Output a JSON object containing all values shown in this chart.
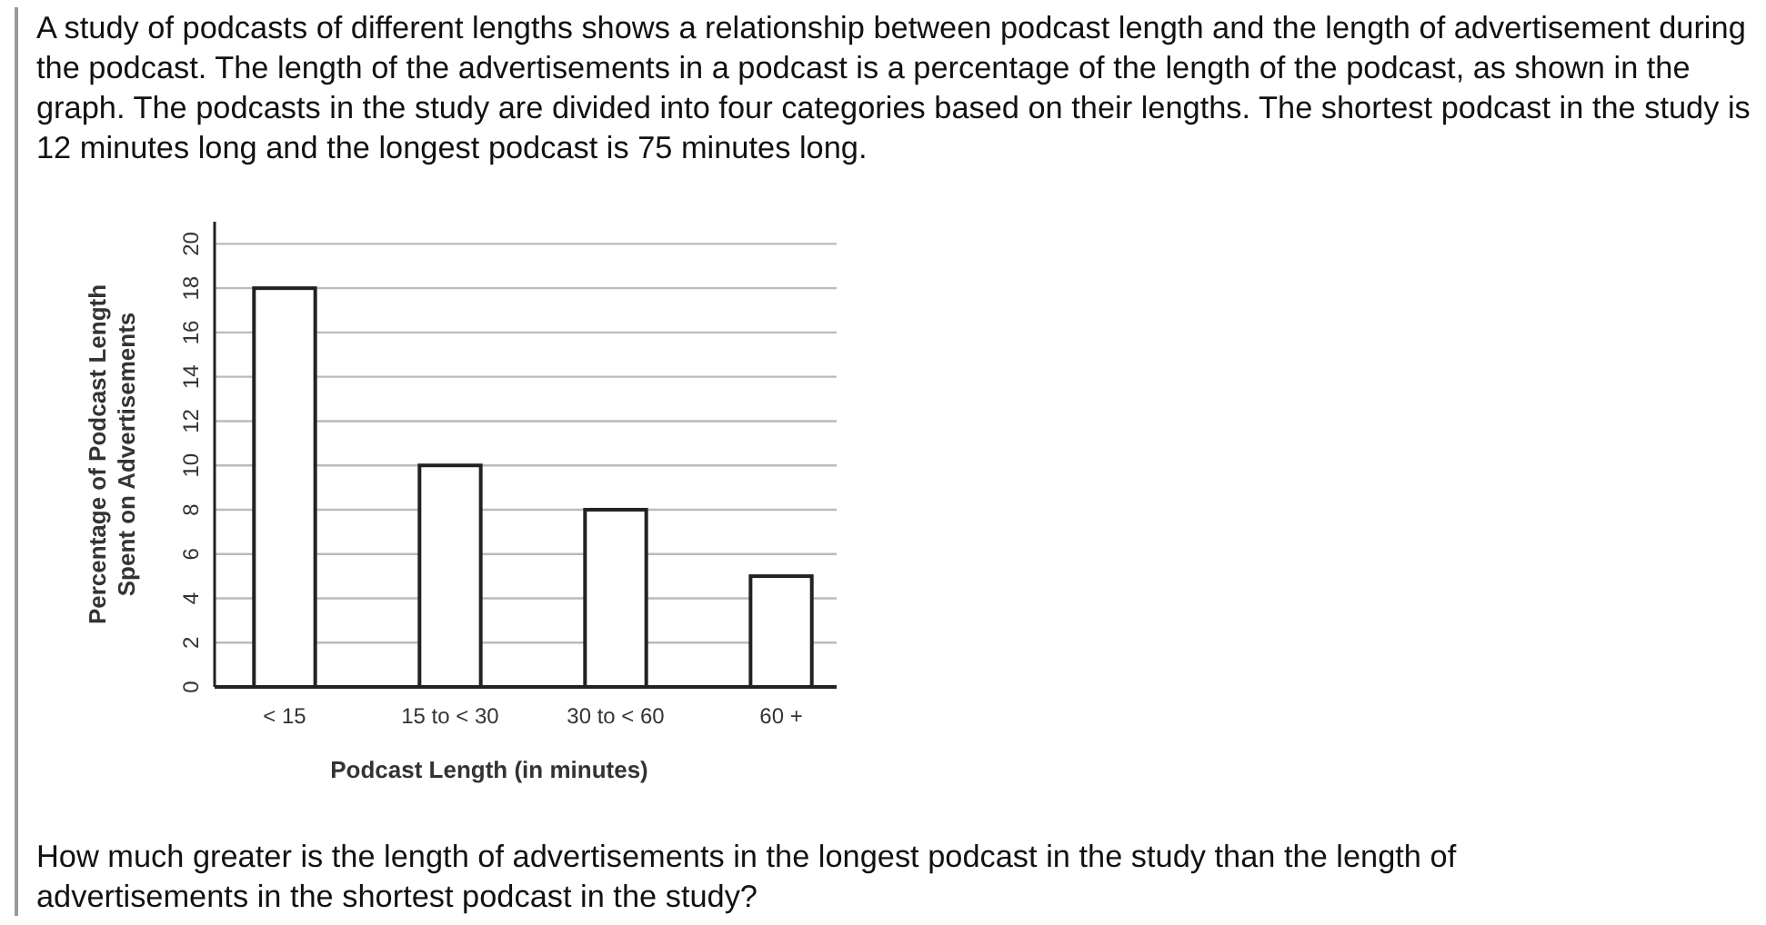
{
  "chart_data": {
    "type": "bar",
    "title": "A study of podcasts of different lengths shows a relationship between podcast length and the length of advertisement during the podcast. The length of the advertisements in a podcast is a percentage of the length of the podcast, as shown in the graph. The podcasts in the study are divided into four categories based on their lengths. The shortest podcast in the study is 12 minutes long and the longest podcast is 75 minutes long.",
    "annotations": [
      "How much greater is the length of advertisements in the longest podcast in the study than the length of advertisements in the shortest podcast in the study?"
    ],
    "categories": [
      "< 15",
      "15 to < 30",
      "30 to < 60",
      "60 +"
    ],
    "values": [
      18,
      10,
      8,
      5
    ],
    "color": "#ffffff",
    "xlabel": "Podcast Length (in minutes)",
    "ylabel": "Percentage of Podcast Length\nSpent on Advertisements",
    "ylim": [
      0,
      21
    ],
    "yticks": [
      0,
      2,
      4,
      6,
      8,
      10,
      12,
      14,
      16,
      18,
      20
    ],
    "grid": "y"
  }
}
